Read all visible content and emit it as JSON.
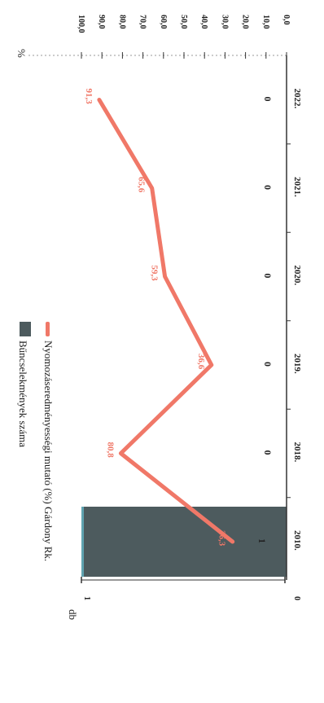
{
  "chart_data": {
    "type": "bar+line",
    "categories": [
      "2010.",
      "2018.",
      "2019.",
      "2020.",
      "2021.",
      "2022."
    ],
    "bar_series": {
      "name": "Bűncselekmények száma",
      "values": [
        1,
        0,
        0,
        0,
        0,
        0
      ],
      "labels": [
        "1",
        "0",
        "0",
        "0",
        "0",
        "0"
      ],
      "color": "#4d5b5e"
    },
    "line_series": {
      "name": "Nyomozáseredményességi mutató (%) Gárdony Rk.",
      "values": [
        26.3,
        80.8,
        36.6,
        59.3,
        65.6,
        91.3
      ],
      "labels": [
        "26,3",
        "80,8",
        "36,6",
        "59,3",
        "65,6",
        "91,3"
      ],
      "color": "#f07868"
    },
    "left_axis": {
      "unit": "db",
      "range": [
        0,
        1
      ],
      "ticks": [
        "0",
        "1"
      ]
    },
    "right_axis": {
      "unit": "%",
      "range": [
        0,
        100
      ],
      "ticks": [
        "0,0",
        "10,0",
        "20,0",
        "30,0",
        "40,0",
        "50,0",
        "60,0",
        "70,0",
        "80,0",
        "90,0",
        "100,0"
      ]
    },
    "legend_position": "top",
    "orientation": "rotated-90"
  }
}
